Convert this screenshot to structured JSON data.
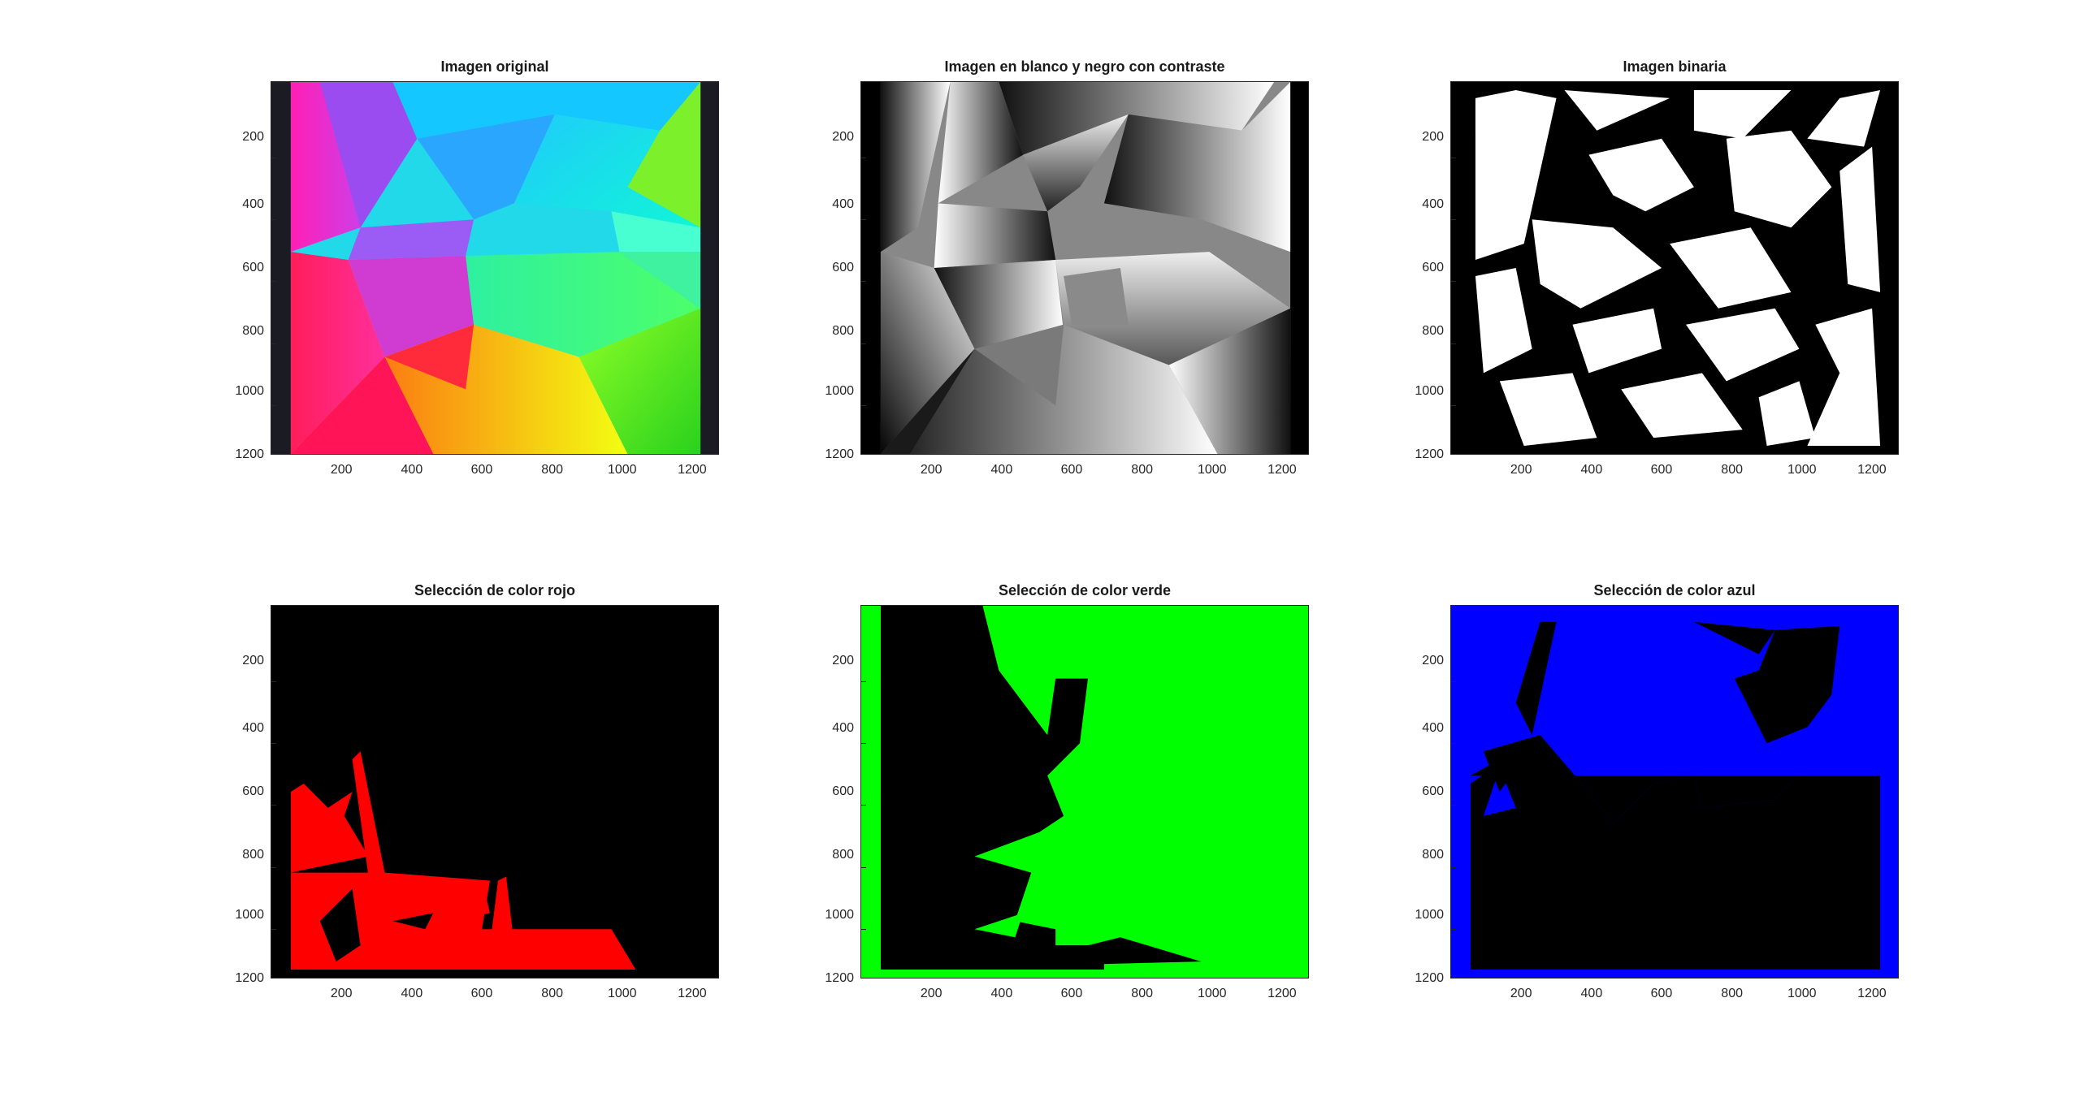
{
  "figure": {
    "panels": [
      {
        "id": "original",
        "title": "Imagen original"
      },
      {
        "id": "gray",
        "title": "Imagen en blanco y negro con contraste"
      },
      {
        "id": "binary",
        "title": "Imagen binaria"
      },
      {
        "id": "red",
        "title": "Selección de color rojo"
      },
      {
        "id": "green",
        "title": "Selección de color verde"
      },
      {
        "id": "blue",
        "title": "Selección de color azul"
      }
    ],
    "axes": {
      "x_ticks": [
        "200",
        "400",
        "600",
        "800",
        "1000",
        "1200"
      ],
      "y_ticks": [
        "200",
        "400",
        "600",
        "800",
        "1000",
        "1200"
      ]
    },
    "colors": {
      "red_mask": "#ff0000",
      "green_mask": "#00ff00",
      "blue_mask": "#0000ff",
      "background": "#000000"
    }
  }
}
